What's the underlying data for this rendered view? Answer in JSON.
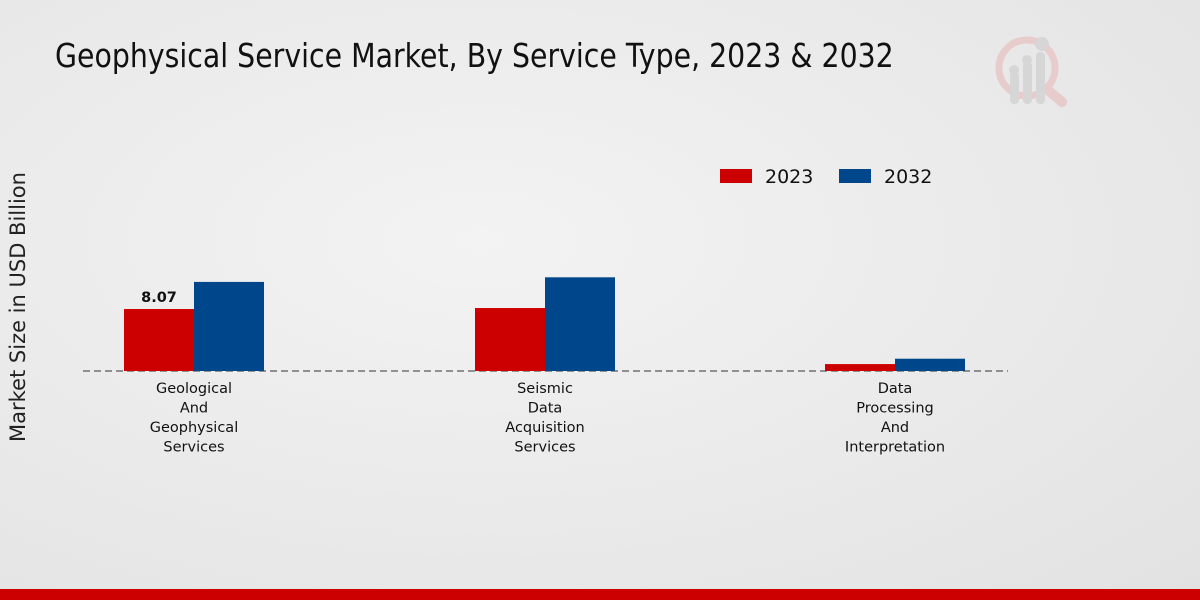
{
  "chart_data": {
    "type": "bar",
    "title": "Geophysical Service Market, By Service Type, 2023 & 2032",
    "xlabel": "",
    "ylabel": "Market Size in USD Billion",
    "categories": [
      [
        "Geological",
        "And",
        "Geophysical",
        "Services"
      ],
      [
        "Seismic",
        "Data",
        "Acquisition",
        "Services"
      ],
      [
        "Data",
        "Processing",
        "And",
        "Interpretation"
      ]
    ],
    "series": [
      {
        "name": "2023",
        "color": "#cc0000",
        "values": [
          8.07,
          8.2,
          0.9
        ]
      },
      {
        "name": "2032",
        "color": "#00468b",
        "values": [
          11.6,
          12.2,
          1.6
        ]
      }
    ],
    "data_labels": [
      {
        "series": 0,
        "index": 0,
        "text": "8.07"
      }
    ],
    "ylim": [
      0,
      20
    ],
    "grid": false,
    "legend_position": "top-right"
  }
}
